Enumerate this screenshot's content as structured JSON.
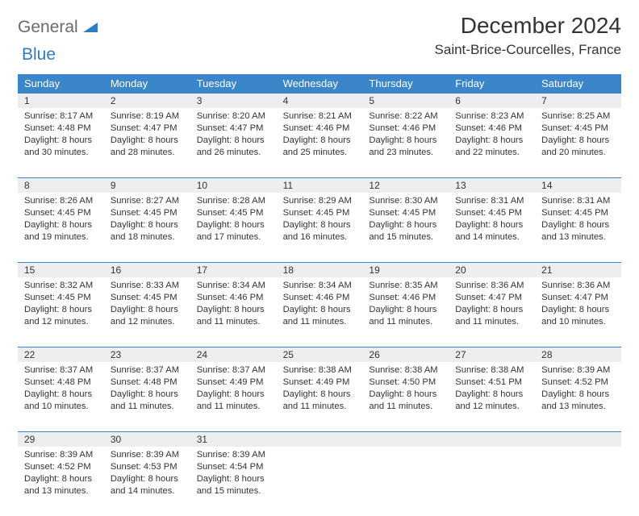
{
  "logo": {
    "part1": "General",
    "part2": "Blue"
  },
  "title": {
    "month": "December 2024",
    "location": "Saint-Brice-Courcelles, France"
  },
  "colors": {
    "header_bg": "#3a86c8",
    "header_text": "#ffffff",
    "daynum_bg": "#eceeef",
    "rule": "#3a86c8",
    "logo_gray": "#6a6a6a",
    "logo_blue": "#2f7cc4",
    "text": "#333333"
  },
  "weekdays": [
    "Sunday",
    "Monday",
    "Tuesday",
    "Wednesday",
    "Thursday",
    "Friday",
    "Saturday"
  ],
  "weeks": [
    [
      {
        "n": "1",
        "sr": "8:17 AM",
        "ss": "4:48 PM",
        "dl": "8 hours and 30 minutes."
      },
      {
        "n": "2",
        "sr": "8:19 AM",
        "ss": "4:47 PM",
        "dl": "8 hours and 28 minutes."
      },
      {
        "n": "3",
        "sr": "8:20 AM",
        "ss": "4:47 PM",
        "dl": "8 hours and 26 minutes."
      },
      {
        "n": "4",
        "sr": "8:21 AM",
        "ss": "4:46 PM",
        "dl": "8 hours and 25 minutes."
      },
      {
        "n": "5",
        "sr": "8:22 AM",
        "ss": "4:46 PM",
        "dl": "8 hours and 23 minutes."
      },
      {
        "n": "6",
        "sr": "8:23 AM",
        "ss": "4:46 PM",
        "dl": "8 hours and 22 minutes."
      },
      {
        "n": "7",
        "sr": "8:25 AM",
        "ss": "4:45 PM",
        "dl": "8 hours and 20 minutes."
      }
    ],
    [
      {
        "n": "8",
        "sr": "8:26 AM",
        "ss": "4:45 PM",
        "dl": "8 hours and 19 minutes."
      },
      {
        "n": "9",
        "sr": "8:27 AM",
        "ss": "4:45 PM",
        "dl": "8 hours and 18 minutes."
      },
      {
        "n": "10",
        "sr": "8:28 AM",
        "ss": "4:45 PM",
        "dl": "8 hours and 17 minutes."
      },
      {
        "n": "11",
        "sr": "8:29 AM",
        "ss": "4:45 PM",
        "dl": "8 hours and 16 minutes."
      },
      {
        "n": "12",
        "sr": "8:30 AM",
        "ss": "4:45 PM",
        "dl": "8 hours and 15 minutes."
      },
      {
        "n": "13",
        "sr": "8:31 AM",
        "ss": "4:45 PM",
        "dl": "8 hours and 14 minutes."
      },
      {
        "n": "14",
        "sr": "8:31 AM",
        "ss": "4:45 PM",
        "dl": "8 hours and 13 minutes."
      }
    ],
    [
      {
        "n": "15",
        "sr": "8:32 AM",
        "ss": "4:45 PM",
        "dl": "8 hours and 12 minutes."
      },
      {
        "n": "16",
        "sr": "8:33 AM",
        "ss": "4:45 PM",
        "dl": "8 hours and 12 minutes."
      },
      {
        "n": "17",
        "sr": "8:34 AM",
        "ss": "4:46 PM",
        "dl": "8 hours and 11 minutes."
      },
      {
        "n": "18",
        "sr": "8:34 AM",
        "ss": "4:46 PM",
        "dl": "8 hours and 11 minutes."
      },
      {
        "n": "19",
        "sr": "8:35 AM",
        "ss": "4:46 PM",
        "dl": "8 hours and 11 minutes."
      },
      {
        "n": "20",
        "sr": "8:36 AM",
        "ss": "4:47 PM",
        "dl": "8 hours and 11 minutes."
      },
      {
        "n": "21",
        "sr": "8:36 AM",
        "ss": "4:47 PM",
        "dl": "8 hours and 10 minutes."
      }
    ],
    [
      {
        "n": "22",
        "sr": "8:37 AM",
        "ss": "4:48 PM",
        "dl": "8 hours and 10 minutes."
      },
      {
        "n": "23",
        "sr": "8:37 AM",
        "ss": "4:48 PM",
        "dl": "8 hours and 11 minutes."
      },
      {
        "n": "24",
        "sr": "8:37 AM",
        "ss": "4:49 PM",
        "dl": "8 hours and 11 minutes."
      },
      {
        "n": "25",
        "sr": "8:38 AM",
        "ss": "4:49 PM",
        "dl": "8 hours and 11 minutes."
      },
      {
        "n": "26",
        "sr": "8:38 AM",
        "ss": "4:50 PM",
        "dl": "8 hours and 11 minutes."
      },
      {
        "n": "27",
        "sr": "8:38 AM",
        "ss": "4:51 PM",
        "dl": "8 hours and 12 minutes."
      },
      {
        "n": "28",
        "sr": "8:39 AM",
        "ss": "4:52 PM",
        "dl": "8 hours and 13 minutes."
      }
    ],
    [
      {
        "n": "29",
        "sr": "8:39 AM",
        "ss": "4:52 PM",
        "dl": "8 hours and 13 minutes."
      },
      {
        "n": "30",
        "sr": "8:39 AM",
        "ss": "4:53 PM",
        "dl": "8 hours and 14 minutes."
      },
      {
        "n": "31",
        "sr": "8:39 AM",
        "ss": "4:54 PM",
        "dl": "8 hours and 15 minutes."
      },
      null,
      null,
      null,
      null
    ]
  ],
  "labels": {
    "sunrise": "Sunrise:",
    "sunset": "Sunset:",
    "daylight": "Daylight:"
  }
}
